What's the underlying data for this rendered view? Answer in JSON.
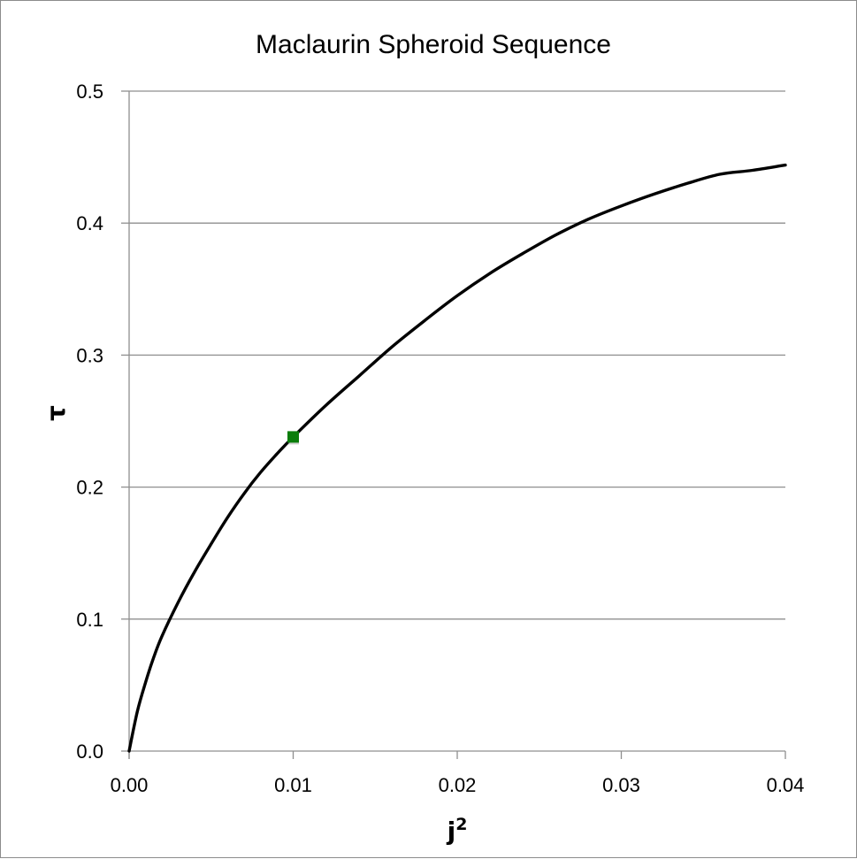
{
  "chart_data": {
    "type": "line",
    "title": "Maclaurin Spheroid Sequence",
    "xlabel": "j",
    "xlabel_superscript": "2",
    "ylabel": "τ",
    "xlim": [
      0,
      0.04
    ],
    "ylim": [
      0,
      0.5
    ],
    "xticks": [
      "0.00",
      "0.01",
      "0.02",
      "0.03",
      "0.04"
    ],
    "yticks": [
      "0.0",
      "0.1",
      "0.2",
      "0.3",
      "0.4",
      "0.5"
    ],
    "grid": "horizontal",
    "legend": "none",
    "series": [
      {
        "kind": "line",
        "color": "#000000",
        "x": [
          0.0,
          0.0005,
          0.001,
          0.0015,
          0.002,
          0.003,
          0.004,
          0.005,
          0.006,
          0.007,
          0.008,
          0.009,
          0.01,
          0.012,
          0.014,
          0.016,
          0.018,
          0.02,
          0.022,
          0.024,
          0.026,
          0.028,
          0.03,
          0.032,
          0.034,
          0.036,
          0.038,
          0.04
        ],
        "y": [
          0.0,
          0.03,
          0.052,
          0.071,
          0.087,
          0.113,
          0.136,
          0.157,
          0.177,
          0.195,
          0.211,
          0.225,
          0.238,
          0.262,
          0.284,
          0.306,
          0.326,
          0.345,
          0.362,
          0.377,
          0.391,
          0.403,
          0.413,
          0.422,
          0.43,
          0.437,
          0.44,
          0.444
        ]
      },
      {
        "kind": "marker",
        "marker": "square",
        "color": "#0a7d0a",
        "x": [
          0.01
        ],
        "y": [
          0.238
        ]
      }
    ]
  }
}
